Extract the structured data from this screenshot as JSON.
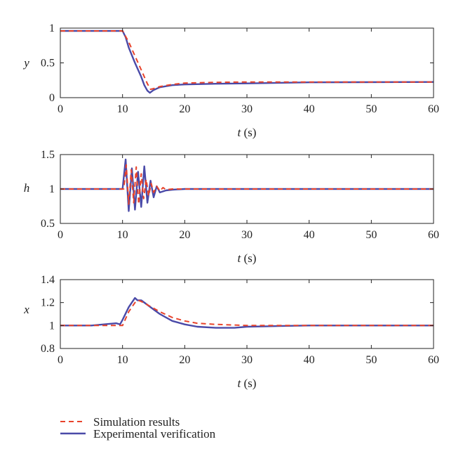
{
  "chart_data": [
    {
      "type": "line",
      "ylabel": "y",
      "xlabel": "t (s)",
      "xlabel_symbol": "t",
      "xlabel_unit": " (s)",
      "xlim": [
        0,
        60
      ],
      "ylim": [
        0,
        1
      ],
      "xticks": [
        "0",
        "10",
        "20",
        "30",
        "40",
        "50",
        "60"
      ],
      "yticks": [
        "0",
        "0.5",
        "1"
      ],
      "yticks_values": [
        0,
        0.5,
        1
      ],
      "grid": false,
      "series": [
        {
          "name": "Simulation results",
          "color": "#e8432b",
          "dash": "dashed",
          "x": [
            0,
            10,
            11,
            12,
            13,
            14,
            14.5,
            15,
            16,
            18,
            20,
            25,
            30,
            40,
            60
          ],
          "y": [
            0.96,
            0.96,
            0.8,
            0.6,
            0.4,
            0.2,
            0.12,
            0.13,
            0.16,
            0.19,
            0.21,
            0.22,
            0.225,
            0.225,
            0.225
          ]
        },
        {
          "name": "Experimental verification",
          "color": "#4a4aa8",
          "dash": "solid",
          "x": [
            0,
            10,
            10.5,
            11,
            12,
            13,
            13.5,
            14,
            14.4,
            15,
            16,
            18,
            20,
            25,
            30,
            40,
            60
          ],
          "y": [
            0.96,
            0.96,
            0.87,
            0.72,
            0.5,
            0.3,
            0.18,
            0.1,
            0.07,
            0.11,
            0.15,
            0.18,
            0.19,
            0.2,
            0.205,
            0.22,
            0.225
          ]
        }
      ]
    },
    {
      "type": "line",
      "ylabel": "h",
      "xlabel": "t (s)",
      "xlabel_symbol": "t",
      "xlabel_unit": " (s)",
      "xlim": [
        0,
        60
      ],
      "ylim": [
        0.5,
        1.5
      ],
      "xticks": [
        "0",
        "10",
        "20",
        "30",
        "40",
        "50",
        "60"
      ],
      "yticks": [
        "0.5",
        "1",
        "1.5"
      ],
      "yticks_values": [
        0.5,
        1,
        1.5
      ],
      "grid": false,
      "series": [
        {
          "name": "Simulation results",
          "color": "#e8432b",
          "dash": "dashed",
          "x": [
            0,
            10.2,
            10.6,
            11.0,
            11.4,
            11.8,
            12.2,
            12.6,
            13.0,
            13.4,
            13.8,
            14.2,
            14.6,
            15.0,
            15.5,
            16.0,
            16.5,
            17.0,
            18,
            20,
            60
          ],
          "y": [
            1.0,
            1.0,
            1.35,
            0.78,
            1.28,
            0.8,
            1.32,
            0.78,
            1.22,
            0.86,
            1.14,
            0.9,
            1.08,
            0.95,
            1.04,
            0.97,
            1.02,
            0.99,
            1.0,
            1.0,
            1.0
          ]
        },
        {
          "name": "Experimental verification",
          "color": "#4a4aa8",
          "dash": "solid",
          "x": [
            0,
            10.0,
            10.5,
            11.0,
            11.5,
            12.0,
            12.5,
            13.0,
            13.5,
            14.0,
            14.5,
            15.0,
            15.5,
            16.0,
            17,
            18,
            20,
            60
          ],
          "y": [
            1.0,
            1.0,
            1.43,
            0.68,
            1.3,
            0.7,
            1.25,
            0.74,
            1.33,
            0.8,
            1.12,
            0.88,
            1.04,
            0.95,
            0.98,
            0.99,
            1.0,
            1.0
          ]
        }
      ]
    },
    {
      "type": "line",
      "ylabel": "x",
      "xlabel": "t (s)",
      "xlabel_symbol": "t",
      "xlabel_unit": " (s)",
      "xlim": [
        0,
        60
      ],
      "ylim": [
        0.8,
        1.4
      ],
      "xticks": [
        "0",
        "10",
        "20",
        "30",
        "40",
        "50",
        "60"
      ],
      "yticks": [
        "0.8",
        "1",
        "1.2",
        "1.4"
      ],
      "yticks_values": [
        0.8,
        1,
        1.2,
        1.4
      ],
      "grid": false,
      "series": [
        {
          "name": "Simulation results",
          "color": "#e8432b",
          "dash": "dashed",
          "x": [
            0,
            10,
            10.5,
            11,
            12,
            12.5,
            13,
            14,
            15,
            16,
            18,
            20,
            22,
            25,
            30,
            35,
            40,
            60
          ],
          "y": [
            1.0,
            1.0,
            1.06,
            1.12,
            1.2,
            1.22,
            1.21,
            1.18,
            1.15,
            1.12,
            1.07,
            1.04,
            1.02,
            1.01,
            1.0,
            1.0,
            1.0,
            1.0
          ]
        },
        {
          "name": "Experimental verification",
          "color": "#4a4aa8",
          "dash": "solid",
          "x": [
            0,
            5,
            9,
            9.6,
            10,
            11,
            12,
            12.4,
            13,
            14,
            15,
            16,
            18,
            20,
            22,
            25,
            28,
            30,
            35,
            40,
            60
          ],
          "y": [
            1.0,
            1.0,
            1.02,
            1.01,
            1.05,
            1.16,
            1.24,
            1.22,
            1.22,
            1.18,
            1.14,
            1.1,
            1.04,
            1.01,
            0.99,
            0.98,
            0.98,
            0.99,
            0.995,
            1.0,
            1.0
          ]
        }
      ]
    }
  ],
  "legend": {
    "placement": "bottom-left",
    "entries": [
      {
        "label": "Simulation results",
        "color": "#e8432b",
        "dash": "dashed"
      },
      {
        "label": "Experimental verification",
        "color": "#4a4aa8",
        "dash": "solid"
      }
    ]
  }
}
